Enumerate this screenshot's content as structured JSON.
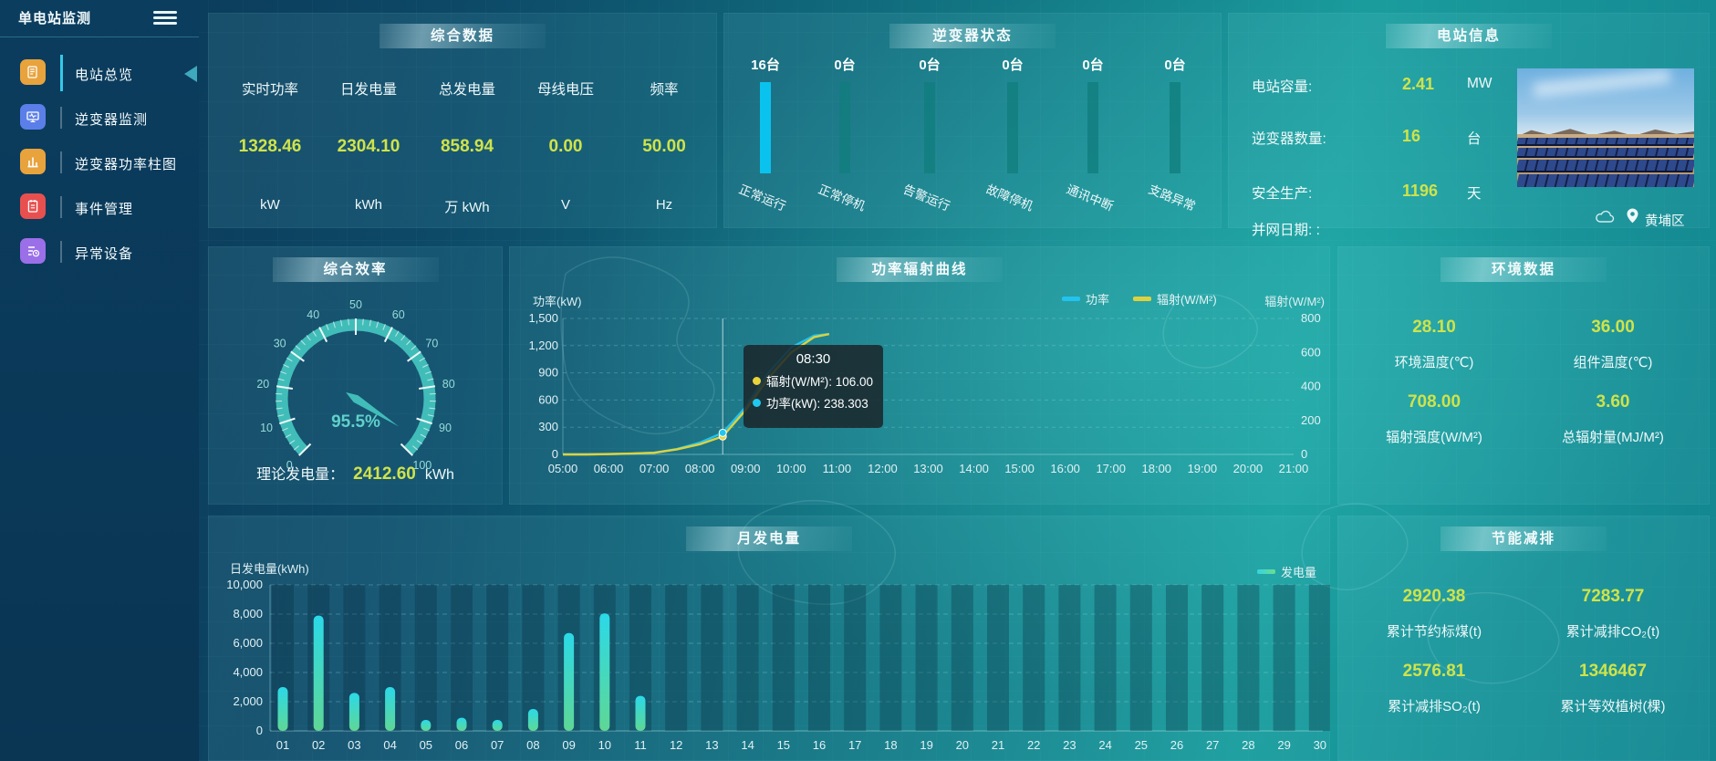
{
  "app": {
    "accent_yellow": "#cfe34a",
    "teal": "#41bdb9",
    "cyan": "#0ac2ee"
  },
  "sidebar": {
    "title": "单电站监测",
    "items": [
      {
        "label": "电站总览",
        "icon": "doc-icon",
        "color": "#e8a33d",
        "active": true
      },
      {
        "label": "逆变器监测",
        "icon": "monitor-icon",
        "color": "#5b7fe8",
        "active": false
      },
      {
        "label": "逆变器功率柱图",
        "icon": "bar-chart-icon",
        "color": "#e8a33d",
        "active": false
      },
      {
        "label": "事件管理",
        "icon": "event-icon",
        "color": "#e85050",
        "active": false
      },
      {
        "label": "异常设备",
        "icon": "device-alert-icon",
        "color": "#9b6fe8",
        "active": false
      }
    ]
  },
  "summary": {
    "title": "综合数据",
    "metrics": [
      {
        "label": "实时功率",
        "value": "1328.46",
        "unit": "kW"
      },
      {
        "label": "日发电量",
        "value": "2304.10",
        "unit": "kWh"
      },
      {
        "label": "总发电量",
        "value": "858.94",
        "unit": "万 kWh"
      },
      {
        "label": "母线电压",
        "value": "0.00",
        "unit": "V"
      },
      {
        "label": "频率",
        "value": "50.00",
        "unit": "Hz"
      }
    ]
  },
  "inverter": {
    "title": "逆变器状态",
    "bars": [
      {
        "count": "16台",
        "label": "正常运行",
        "highlight": true,
        "value": 16
      },
      {
        "count": "0台",
        "label": "正常停机",
        "highlight": false,
        "value": 0
      },
      {
        "count": "0台",
        "label": "告警运行",
        "highlight": false,
        "value": 0
      },
      {
        "count": "0台",
        "label": "故障停机",
        "highlight": false,
        "value": 0
      },
      {
        "count": "0台",
        "label": "通讯中断",
        "highlight": false,
        "value": 0
      },
      {
        "count": "0台",
        "label": "支路异常",
        "highlight": false,
        "value": 0
      }
    ],
    "total": 16
  },
  "station": {
    "title": "电站信息",
    "rows": [
      {
        "label": "电站容量:",
        "value": "2.41",
        "unit": "MW"
      },
      {
        "label": "逆变器数量:",
        "value": "16",
        "unit": "台"
      },
      {
        "label": "安全生产:",
        "value": "1196",
        "unit": "天"
      },
      {
        "label": "并网日期: :",
        "value": "",
        "unit": ""
      }
    ],
    "location": "黄埔区"
  },
  "efficiency": {
    "title": "综合效率",
    "gauge_display": "95.5%",
    "theory_label": "理论发电量：",
    "theory_value": "2412.60",
    "theory_unit": "kWh"
  },
  "curve": {
    "title": "功率辐射曲线",
    "left_axis_name": "功率(kW)",
    "right_axis_name": "辐射(W/M²)",
    "legend": [
      {
        "name": "功率",
        "color": "#22c3ef"
      },
      {
        "name": "辐射(W/M²)",
        "color": "#ddd23e"
      }
    ],
    "left_ticks": [
      "1,500",
      "1,200",
      "900",
      "600",
      "300",
      "0"
    ],
    "right_ticks": [
      "800",
      "600",
      "400",
      "200",
      "0"
    ],
    "x_labels": [
      "05:00",
      "06:00",
      "07:00",
      "08:00",
      "09:00",
      "10:00",
      "11:00",
      "12:00",
      "13:00",
      "14:00",
      "15:00",
      "16:00",
      "17:00",
      "18:00",
      "19:00",
      "20:00",
      "21:00"
    ],
    "tooltip": {
      "time": "08:30",
      "rows": [
        {
          "label": "辐射(W/M²):",
          "value": "106.00",
          "color": "#e8d33b"
        },
        {
          "label": "功率(kW):",
          "value": "238.303",
          "color": "#1fc8f0"
        }
      ]
    }
  },
  "environment": {
    "title": "环境数据",
    "items": [
      {
        "value": "28.10",
        "label": "环境温度(℃)"
      },
      {
        "value": "36.00",
        "label": "组件温度(℃)"
      },
      {
        "value": "708.00",
        "label": "辐射强度(W/M²)"
      },
      {
        "value": "3.60",
        "label": "总辐射量(MJ/M²)"
      }
    ]
  },
  "monthly": {
    "title": "月发电量",
    "axis_name": "日发电量(kWh)",
    "legend": "发电量",
    "y_ticks": [
      "10,000",
      "8,000",
      "6,000",
      "4,000",
      "2,000",
      "0"
    ]
  },
  "saving": {
    "title": "节能减排",
    "items": [
      {
        "value": "2920.38",
        "label": "累计节约标煤(t)"
      },
      {
        "value": "7283.77",
        "label": "累计减排CO₂(t)"
      },
      {
        "value": "2576.81",
        "label": "累计减排SO₂(t)"
      },
      {
        "value": "1346467",
        "label": "累计等效植树(棵)"
      }
    ]
  },
  "chart_data": [
    {
      "type": "bar",
      "id": "inverter_status",
      "categories": [
        "正常运行",
        "正常停机",
        "告警运行",
        "故障停机",
        "通讯中断",
        "支路异常"
      ],
      "values": [
        16,
        0,
        0,
        0,
        0,
        0
      ],
      "unit": "台",
      "ylim": [
        0,
        16
      ]
    },
    {
      "type": "gauge",
      "id": "efficiency",
      "value": 95.5,
      "min": 0,
      "max": 100,
      "step": 10,
      "labels": [
        0,
        10,
        20,
        30,
        40,
        50,
        60,
        70,
        80,
        90,
        100
      ],
      "unit": "%"
    },
    {
      "type": "line",
      "id": "power_radiation_curve",
      "x_hours": [
        5,
        5.5,
        6,
        6.5,
        7,
        7.5,
        8,
        8.5,
        9,
        9.5,
        10,
        10.5,
        10.83
      ],
      "series": [
        {
          "name": "功率",
          "unit": "kW",
          "color": "#22c3ef",
          "axis": "left",
          "values": [
            0,
            0,
            3,
            8,
            18,
            60,
            130,
            238.3,
            520,
            900,
            1180,
            1310,
            1328
          ]
        },
        {
          "name": "辐射",
          "unit": "W/M²",
          "color": "#ddd23e",
          "axis": "right",
          "values": [
            0,
            0,
            2,
            5,
            10,
            30,
            60,
            106,
            260,
            450,
            600,
            690,
            708
          ]
        }
      ],
      "xlabel_range": [
        "05:00",
        "21:00"
      ],
      "ylim_left": [
        0,
        1500
      ],
      "ylim_right": [
        0,
        800
      ],
      "crosshair_hour": 8.5,
      "grid": "dashed",
      "legend_position": "top-right"
    },
    {
      "type": "bar",
      "id": "monthly_energy",
      "categories": [
        "01",
        "02",
        "03",
        "04",
        "05",
        "06",
        "07",
        "08",
        "09",
        "10",
        "11",
        "12",
        "13",
        "14",
        "15",
        "16",
        "17",
        "18",
        "19",
        "20",
        "21",
        "22",
        "23",
        "24",
        "25",
        "26",
        "27",
        "28",
        "29",
        "30"
      ],
      "values": [
        3000,
        7900,
        2600,
        3000,
        750,
        900,
        750,
        1500,
        6700,
        8050,
        2400,
        0,
        0,
        0,
        0,
        0,
        0,
        0,
        0,
        0,
        0,
        0,
        0,
        0,
        0,
        0,
        0,
        0,
        0,
        0
      ],
      "ylim": [
        0,
        10000
      ],
      "ylabel": "日发电量(kWh)",
      "legend": "发电量"
    }
  ]
}
